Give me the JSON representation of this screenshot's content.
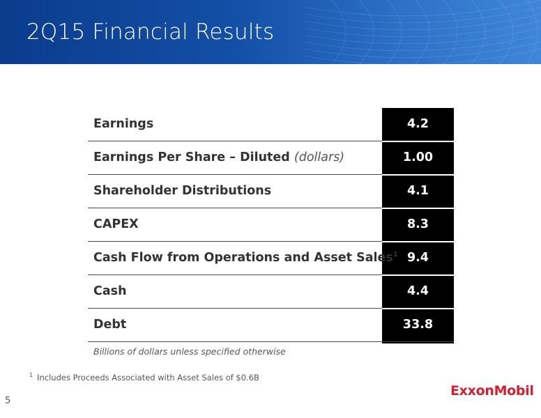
{
  "slide": {
    "title": "2Q15 Financial Results",
    "page_number": "5",
    "logo_text": "ExxonMobil"
  },
  "table": {
    "rows": [
      {
        "label": "Earnings",
        "unit": "",
        "footnote_ref": "",
        "value": "4.2"
      },
      {
        "label": "Earnings Per Share – Diluted",
        "unit": "(dollars)",
        "footnote_ref": "",
        "value": "1.00"
      },
      {
        "label": "Shareholder Distributions",
        "unit": "",
        "footnote_ref": "",
        "value": "4.1"
      },
      {
        "label": "CAPEX",
        "unit": "",
        "footnote_ref": "",
        "value": "8.3"
      },
      {
        "label": "Cash Flow from Operations and Asset Sales",
        "unit": "",
        "footnote_ref": "1",
        "value": "9.4"
      },
      {
        "label": "Cash",
        "unit": "",
        "footnote_ref": "",
        "value": "4.4"
      },
      {
        "label": "Debt",
        "unit": "",
        "footnote_ref": "",
        "value": "33.8"
      }
    ],
    "units_note": "Billions of dollars unless specified otherwise"
  },
  "footnote": {
    "marker": "1",
    "text": "Includes Proceeds Associated with Asset Sales of $0.6B"
  },
  "colors": {
    "header_dark": "#0a3c8c",
    "header_light": "#3f86d8",
    "value_column": "#000000",
    "logo_red": "#d32030"
  }
}
